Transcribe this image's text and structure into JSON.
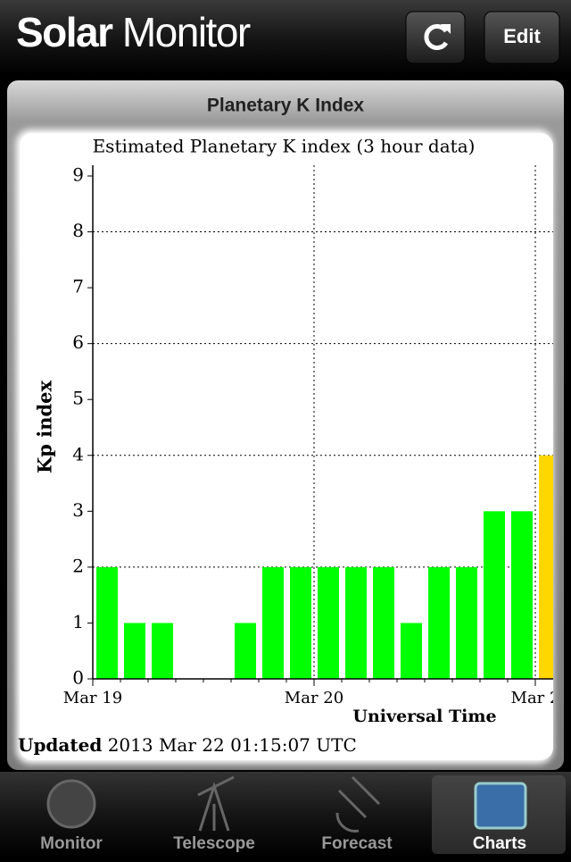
{
  "header": {
    "title_bold": "Solar",
    "title_rest": "Monitor",
    "edit_button": "Edit"
  },
  "panel": {
    "title": "Planetary K Index"
  },
  "chart_data": {
    "type": "bar",
    "title": "Estimated Planetary K index (3 hour data)",
    "y_label": "Kp index",
    "x_label": "Universal Time",
    "categories": [
      "Mar 19",
      null,
      null,
      null,
      null,
      null,
      null,
      null,
      "Mar 20",
      null,
      null,
      null,
      null,
      null,
      null,
      null,
      "Mar 2"
    ],
    "values": [
      2,
      1,
      1,
      0,
      0,
      1,
      2,
      2,
      2,
      2,
      2,
      1,
      2,
      2,
      3,
      3,
      4
    ],
    "colors": [
      "#00ff00",
      "#00ff00",
      "#00ff00",
      "#00ff00",
      "#00ff00",
      "#00ff00",
      "#00ff00",
      "#00ff00",
      "#00ff00",
      "#00ff00",
      "#00ff00",
      "#00ff00",
      "#00ff00",
      "#00ff00",
      "#00ff00",
      "#00ff00",
      "#ffd700"
    ],
    "ylim": [
      0,
      9
    ],
    "yticks": [
      0,
      1,
      2,
      3,
      4,
      5,
      6,
      7,
      8,
      9
    ],
    "grid_lines": [
      2,
      4,
      6,
      8
    ],
    "updated_label": "Updated",
    "updated_time": "2013 Mar 22 01:15:07 UTC"
  },
  "tabs": [
    {
      "label": "Monitor"
    },
    {
      "label": "Telescope"
    },
    {
      "label": "Forecast"
    },
    {
      "label": "Charts",
      "selected": true
    }
  ]
}
